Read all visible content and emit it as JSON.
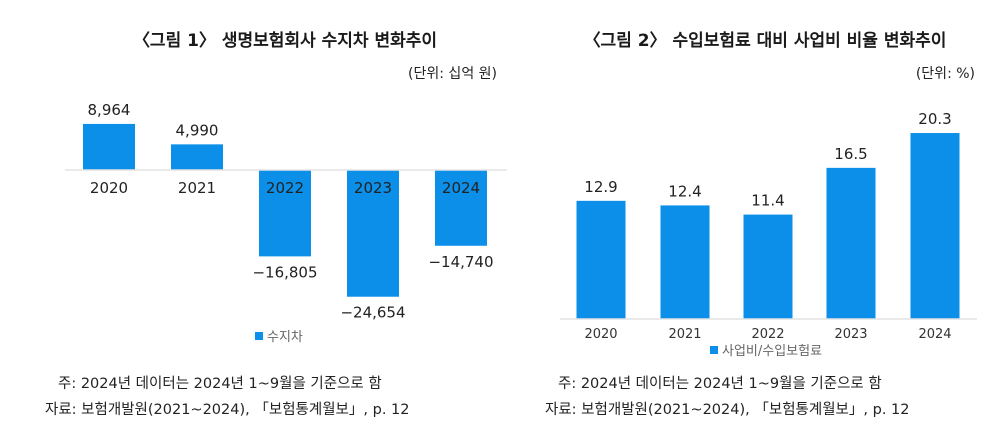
{
  "colors": {
    "bar": "#0b8fe8",
    "axis": "#e3e3e3"
  },
  "chart_data": [
    {
      "type": "bar",
      "title": "〈그림 1〉 생명보험회사 수지차 변화추이",
      "unit": "(단위: 십억 원)",
      "categories": [
        "2020",
        "2021",
        "2022",
        "2023",
        "2024"
      ],
      "series": [
        {
          "name": "수지차",
          "values": [
            8964,
            4990,
            -16805,
            -24654,
            -14740
          ]
        }
      ],
      "data_labels": [
        "8,964",
        "4,990",
        "−16,805",
        "−24,654",
        "−14,740"
      ],
      "legend": "bottom",
      "grid": false,
      "notes": [
        "주: 2024년 데이터는 2024년 1~9월을 기준으로 함",
        "자료: 보험개발원(2021~2024), 「보험통계월보」, p. 12"
      ]
    },
    {
      "type": "bar",
      "title": "〈그림 2〉 수입보험료 대비 사업비 비율 변화추이",
      "unit": "(단위: %)",
      "categories": [
        "2020",
        "2021",
        "2022",
        "2023",
        "2024"
      ],
      "series": [
        {
          "name": "사업비/수입보험료",
          "values": [
            12.9,
            12.4,
            11.4,
            16.5,
            20.3
          ]
        }
      ],
      "data_labels": [
        "12.9",
        "12.4",
        "11.4",
        "16.5",
        "20.3"
      ],
      "legend": "bottom",
      "grid": false,
      "notes": [
        "주: 2024년 데이터는 2024년 1~9월을 기준으로 함",
        "자료: 보험개발원(2021~2024), 「보험통계월보」, p. 12"
      ]
    }
  ]
}
